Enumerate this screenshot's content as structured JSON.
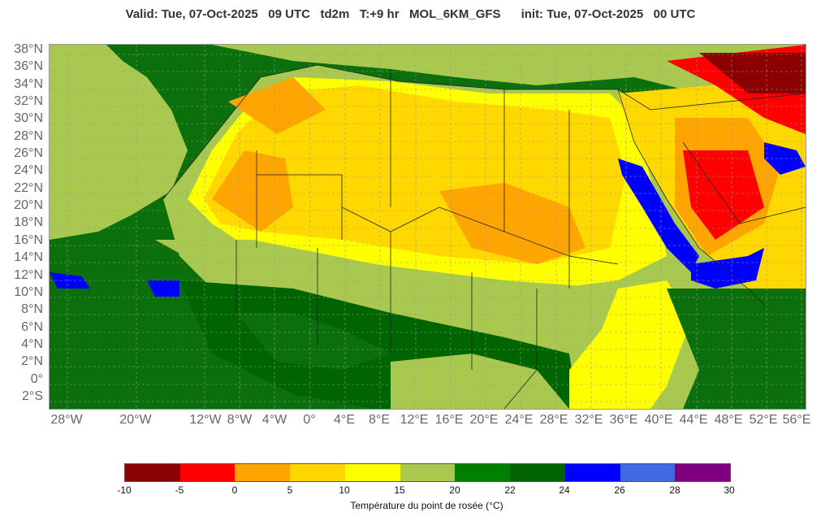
{
  "header": {
    "title": "Valid: Tue, 07-Oct-2025   09 UTC   td2m   T:+9 hr   MOL_6KM_GFS      init: Tue, 07-Oct-2025   00 UTC"
  },
  "map": {
    "lat_labels": [
      "38°N",
      "36°N",
      "34°N",
      "32°N",
      "30°N",
      "28°N",
      "26°N",
      "24°N",
      "22°N",
      "20°N",
      "18°N",
      "16°N",
      "14°N",
      "12°N",
      "10°N",
      "8°N",
      "6°N",
      "4°N",
      "2°N",
      "0°",
      "2°S"
    ],
    "lon_labels": [
      "28°W",
      "20°W",
      "12°W",
      "8°W",
      "4°W",
      "0°",
      "4°E",
      "8°E",
      "12°E",
      "16°E",
      "20°E",
      "24°E",
      "28°E",
      "32°E",
      "36°E",
      "40°E",
      "44°E",
      "48°E",
      "52°E",
      "56°E"
    ],
    "colors": {
      "ocean": "#0b6f0b",
      "dark": "#006400",
      "light_green": "#a8c850",
      "yellow": "#ffff00",
      "gold": "#ffd800",
      "orange": "#ffa500",
      "red": "#ff0000",
      "darkred": "#8b0000",
      "blue": "#0000ff"
    }
  },
  "legend": {
    "colors": [
      "#8b0000",
      "#ff0000",
      "#ffa500",
      "#ffd700",
      "#ffff00",
      "#aac84c",
      "#008000",
      "#006400",
      "#0000ff",
      "#4169e1",
      "#800080"
    ],
    "ticks": [
      "-10",
      "-5",
      "0",
      "5",
      "10",
      "15",
      "20",
      "22",
      "24",
      "26",
      "28",
      "30"
    ],
    "label": "Température du point de rosée (°C)"
  }
}
